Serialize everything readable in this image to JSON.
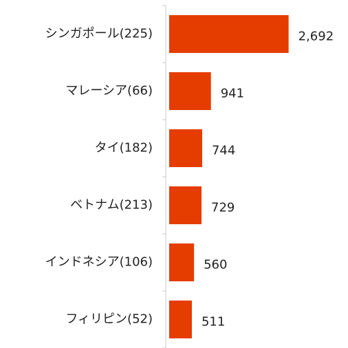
{
  "chart_data": {
    "type": "bar",
    "orientation": "horizontal",
    "categories": [
      "シンガポール(225)",
      "マレーシア(66)",
      "タイ(182)",
      "ベトナム(213)",
      "インドネシア(106)",
      "フィリピン(52)"
    ],
    "values": [
      2692,
      941,
      744,
      729,
      560,
      511
    ],
    "value_labels": [
      "2,692",
      "941",
      "744",
      "729",
      "560",
      "511"
    ],
    "color": "#e53c00",
    "xlim": [
      0,
      4000
    ]
  }
}
